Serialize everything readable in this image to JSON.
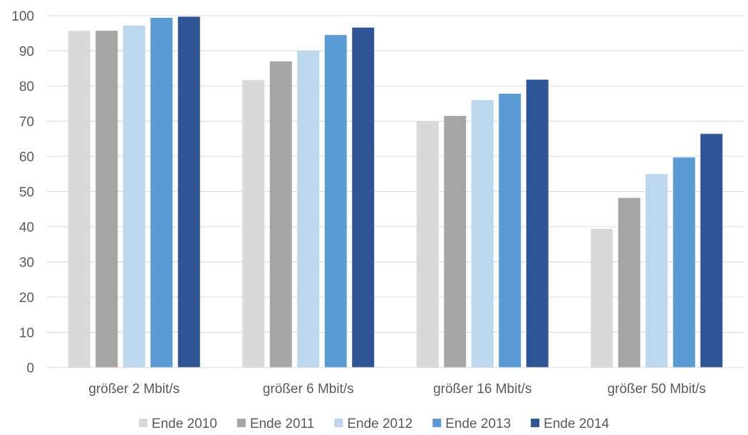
{
  "chart_data": {
    "type": "bar",
    "categories": [
      "größer 2 Mbit/s",
      "größer 6 Mbit/s",
      "größer 16 Mbit/s",
      "größer 50 Mbit/s"
    ],
    "series": [
      {
        "name": "Ende 2010",
        "color": "#d9d9d9",
        "values": [
          95.7,
          81.7,
          70.0,
          39.4
        ]
      },
      {
        "name": "Ende 2011",
        "color": "#a5a5a5",
        "values": [
          95.7,
          87.0,
          71.5,
          48.2
        ]
      },
      {
        "name": "Ende 2012",
        "color": "#bdd7ee",
        "values": [
          97.2,
          90.0,
          76.0,
          55.0
        ]
      },
      {
        "name": "Ende 2013",
        "color": "#5b9bd5",
        "values": [
          99.4,
          94.5,
          77.8,
          59.7
        ]
      },
      {
        "name": "Ende 2014",
        "color": "#2f5597",
        "values": [
          99.7,
          96.6,
          81.8,
          66.4
        ]
      }
    ],
    "yticks": [
      "0",
      "10",
      "20",
      "30",
      "40",
      "50",
      "60",
      "70",
      "80",
      "90",
      "100"
    ],
    "ylim": [
      0,
      100
    ],
    "grid": true,
    "legend_position": "bottom",
    "title": "",
    "xlabel": "",
    "ylabel": ""
  }
}
